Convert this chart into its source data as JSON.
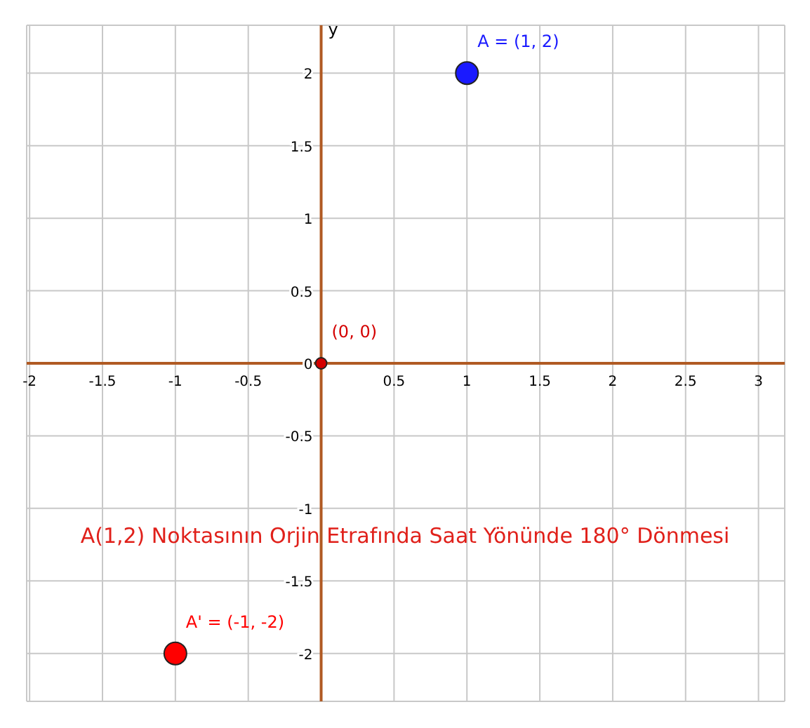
{
  "chart_data": {
    "type": "scatter",
    "ylabel": "y",
    "series": [
      {
        "name": "A = (1, 2)",
        "color": "#1a1aff",
        "x": [
          1
        ],
        "values": [
          2
        ]
      },
      {
        "name": "(0, 0)",
        "color": "#d40000",
        "x": [
          0
        ],
        "values": [
          0
        ]
      },
      {
        "name": "A' = (-1, -2)",
        "color": "#ff0000",
        "x": [
          -1
        ],
        "values": [
          -2
        ]
      }
    ],
    "xlim": [
      -2.02,
      3.18
    ],
    "ylim": [
      -2.33,
      2.33
    ],
    "xticks": [
      -2,
      -1.5,
      -1,
      -0.5,
      {
        "value": 0,
        "label": null
      },
      0.5,
      1,
      1.5,
      2,
      2.5,
      3
    ],
    "yticks": [
      -2,
      -1.5,
      -1,
      -0.5,
      0,
      0.5,
      1,
      1.5,
      2
    ],
    "grid": true,
    "marker": "circle",
    "annotations": [
      "A(1,2) Noktasının Orjin Etrafında Saat Yönünde 180° Dönmesi"
    ]
  }
}
